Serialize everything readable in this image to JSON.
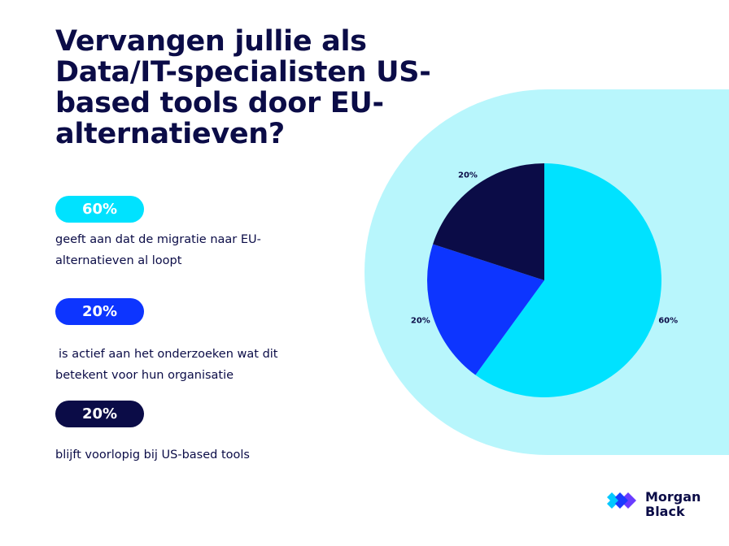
{
  "chart_data": {
    "type": "pie",
    "title": "Vervangen jullie als Data/IT-specialisten US-based tools door EU-alternatieven?",
    "categories": [
      "geeft aan dat de migratie naar EU-alternatieven al loopt",
      "is actief aan het onderzoeken wat dit betekent voor hun organisatie",
      "blijft voorlopig bij US-based tools"
    ],
    "values": [
      60,
      20,
      20
    ],
    "value_labels": [
      "60%",
      "20%",
      "20%"
    ],
    "colors": [
      "#00e2ff",
      "#0d35ff",
      "#0b0c47"
    ]
  },
  "logo": {
    "line1": "Morgan",
    "line2": "Black"
  }
}
